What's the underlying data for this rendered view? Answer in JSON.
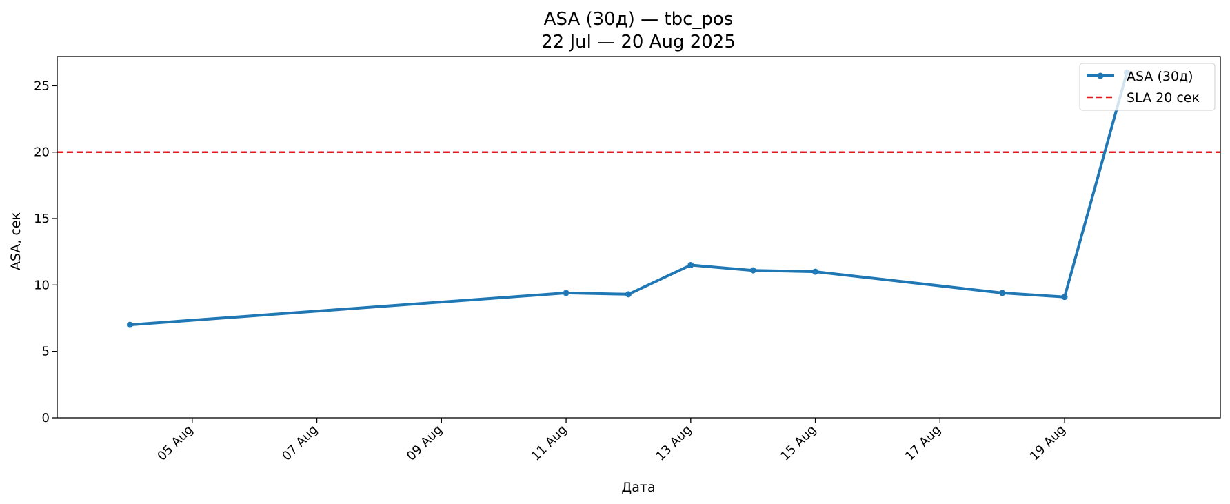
{
  "chart_data": {
    "type": "line",
    "title": "ASA (30д) — tbc_pos",
    "subtitle": "22 Jul — 20 Aug 2025",
    "xlabel": "Дата",
    "ylabel": "ASA, сек",
    "xlim": [
      "2025-08-02T20:00",
      "2025-08-21T12:00"
    ],
    "ylim": [
      0,
      27.2
    ],
    "grid": false,
    "legend_position": "top-right",
    "x_ticks": [
      {
        "date": "2025-08-05",
        "label": "05 Aug"
      },
      {
        "date": "2025-08-07",
        "label": "07 Aug"
      },
      {
        "date": "2025-08-09",
        "label": "09 Aug"
      },
      {
        "date": "2025-08-11",
        "label": "11 Aug"
      },
      {
        "date": "2025-08-13",
        "label": "13 Aug"
      },
      {
        "date": "2025-08-15",
        "label": "15 Aug"
      },
      {
        "date": "2025-08-17",
        "label": "17 Aug"
      },
      {
        "date": "2025-08-19",
        "label": "19 Aug"
      }
    ],
    "y_ticks": [
      0,
      5,
      10,
      15,
      20,
      25
    ],
    "series": [
      {
        "name": "ASA (30д)",
        "color": "#1f77b4",
        "points": [
          {
            "x": "2025-08-04",
            "y": 7.0
          },
          {
            "x": "2025-08-11",
            "y": 9.4
          },
          {
            "x": "2025-08-12",
            "y": 9.3
          },
          {
            "x": "2025-08-13",
            "y": 11.5
          },
          {
            "x": "2025-08-14",
            "y": 11.1
          },
          {
            "x": "2025-08-15",
            "y": 11.0
          },
          {
            "x": "2025-08-18",
            "y": 9.4
          },
          {
            "x": "2025-08-19",
            "y": 9.1
          },
          {
            "x": "2025-08-20",
            "y": 26.0
          }
        ]
      }
    ],
    "reference_lines": [
      {
        "name": "SLA 20 сек",
        "y": 20,
        "color": "#e41a1c",
        "style": "dashed"
      }
    ]
  }
}
